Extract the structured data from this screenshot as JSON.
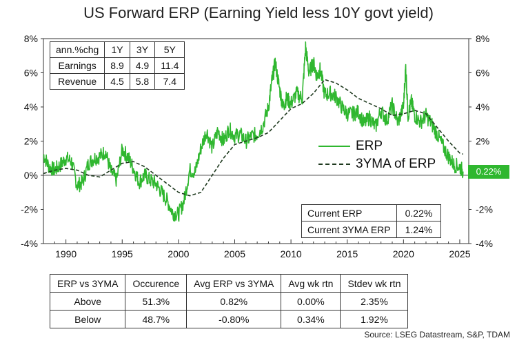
{
  "title": "US Forward ERP (Earning Yield less 10Y govt yield)",
  "source": "Source: LSEG Datastream, S&P, TDAM",
  "current_badge": "0.22%",
  "colors": {
    "erp": "#2fb72f",
    "ma": "#1f3a1f",
    "badge": "#2fb72f"
  },
  "growth_table": {
    "header": [
      "ann.%chg",
      "1Y",
      "3Y",
      "5Y"
    ],
    "rows": [
      [
        "Earnings",
        "8.9",
        "4.9",
        "11.4"
      ],
      [
        "Revenue",
        "4.5",
        "5.8",
        "7.4"
      ]
    ]
  },
  "current_table": {
    "rows": [
      [
        "Current ERP",
        "0.22%"
      ],
      [
        "Current 3YMA ERP",
        "1.24%"
      ]
    ]
  },
  "stats_table": {
    "header": [
      "ERP vs 3YMA",
      "Occurence",
      "Avg ERP vs 3YMA",
      "Avg wk rtn",
      "Stdev wk rtn"
    ],
    "rows": [
      [
        "Above",
        "51.3%",
        "0.82%",
        "0.00%",
        "2.35%"
      ],
      [
        "Below",
        "48.7%",
        "-0.80%",
        "0.34%",
        "1.92%"
      ]
    ]
  },
  "chart_data": {
    "type": "line",
    "title": "US Forward ERP (Earning Yield less 10Y govt yield)",
    "xlim": [
      1988,
      2025.8
    ],
    "ylim": [
      -4,
      8
    ],
    "x_ticks": [
      1990,
      1995,
      2000,
      2005,
      2010,
      2015,
      2020,
      2025
    ],
    "y_ticks_left": [
      "-4%",
      "-2%",
      "0%",
      "2%",
      "4%",
      "6%",
      "8%"
    ],
    "y_ticks_right": [
      "-4%",
      "-2%",
      "0%",
      "2%",
      "4%",
      "6%",
      "8%"
    ],
    "y_tick_values": [
      -4,
      -2,
      0,
      2,
      4,
      6,
      8
    ],
    "legend": [
      "ERP",
      "3YMA of ERP"
    ],
    "legend_position": "right",
    "grid": false,
    "series": [
      {
        "name": "ERP",
        "x": [
          1988,
          1988.5,
          1989,
          1989.5,
          1990,
          1990.5,
          1991,
          1991.5,
          1992,
          1992.5,
          1993,
          1993.5,
          1994,
          1994.5,
          1995,
          1995.5,
          1996,
          1996.5,
          1997,
          1997.5,
          1998,
          1998.5,
          1999,
          1999.5,
          2000,
          2000.5,
          2001,
          2001.5,
          2002,
          2002.5,
          2003,
          2003.5,
          2004,
          2004.5,
          2005,
          2005.5,
          2006,
          2006.5,
          2007,
          2007.5,
          2008,
          2008.3,
          2008.6,
          2009,
          2009.3,
          2009.6,
          2010,
          2010.5,
          2011,
          2011.3,
          2011.6,
          2012,
          2012.3,
          2012.6,
          2013,
          2013.5,
          2014,
          2014.5,
          2015,
          2015.5,
          2016,
          2016.5,
          2017,
          2017.5,
          2018,
          2018.5,
          2019,
          2019.5,
          2020,
          2020.2,
          2020.4,
          2020.7,
          2021,
          2021.5,
          2022,
          2022.5,
          2023,
          2023.5,
          2024,
          2024.5,
          2025,
          2025.3
        ],
        "y": [
          1.2,
          0.5,
          0.3,
          0.6,
          1.0,
          0.8,
          -0.6,
          -0.4,
          0.7,
          1.0,
          1.1,
          1.4,
          0.2,
          -0.3,
          1.5,
          1.1,
          0.4,
          -0.4,
          0.0,
          -0.3,
          -0.5,
          -1.0,
          -1.5,
          -2.2,
          -2.3,
          -1.5,
          0.3,
          0.2,
          1.6,
          2.6,
          1.6,
          2.6,
          2.0,
          2.7,
          2.3,
          2.4,
          2.0,
          2.3,
          2.4,
          2.9,
          4.0,
          5.5,
          6.6,
          5.0,
          4.0,
          4.5,
          4.2,
          4.8,
          4.5,
          7.5,
          6.0,
          6.6,
          5.8,
          6.2,
          4.7,
          4.8,
          4.6,
          4.0,
          3.6,
          3.6,
          3.7,
          3.0,
          3.4,
          2.8,
          3.8,
          3.2,
          4.1,
          3.1,
          4.0,
          6.4,
          3.5,
          4.3,
          3.5,
          3.1,
          3.5,
          3.0,
          2.4,
          1.7,
          1.1,
          0.6,
          0.5,
          0.22
        ]
      },
      {
        "name": "3YMA of ERP",
        "x": [
          1988,
          1989,
          1990,
          1991,
          1992,
          1993,
          1994,
          1995,
          1996,
          1997,
          1998,
          1999,
          2000,
          2001,
          2002,
          2003,
          2004,
          2005,
          2006,
          2007,
          2008,
          2009,
          2010,
          2011,
          2012,
          2013,
          2014,
          2015,
          2016,
          2017,
          2018,
          2019,
          2020,
          2021,
          2022,
          2023,
          2024,
          2025,
          2025.3
        ],
        "y": [
          0.1,
          0.3,
          0.4,
          0.3,
          0.0,
          -0.1,
          0.3,
          0.7,
          0.8,
          0.5,
          0.0,
          -0.5,
          -1.0,
          -1.2,
          -1.0,
          0.0,
          1.0,
          1.8,
          2.0,
          2.2,
          2.5,
          3.2,
          3.9,
          4.2,
          4.8,
          5.6,
          5.4,
          5.0,
          4.5,
          4.2,
          3.9,
          3.5,
          3.6,
          3.8,
          3.6,
          2.8,
          2.0,
          1.3,
          1.24
        ]
      }
    ]
  }
}
